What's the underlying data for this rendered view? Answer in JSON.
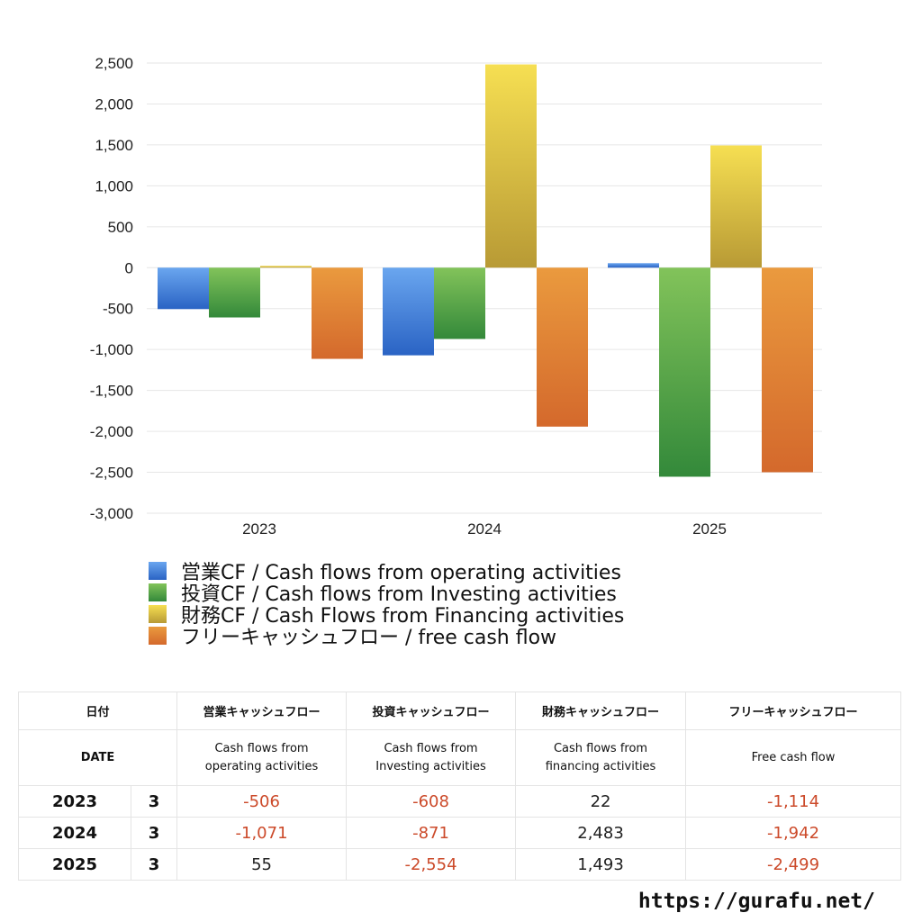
{
  "chart_data": {
    "type": "bar",
    "categories": [
      "2023",
      "2024",
      "2025"
    ],
    "series": [
      {
        "name": "営業CF / Cash flows from operating activities",
        "values": [
          -506,
          -1071,
          55
        ],
        "color": "#3d7fdb"
      },
      {
        "name": "投資CF / Cash flows from Investing activities",
        "values": [
          -608,
          -871,
          -2554
        ],
        "color": "#4ea646"
      },
      {
        "name": "財務CF / Cash Flows from Financing activities",
        "values": [
          22,
          2483,
          1493
        ],
        "color": "#e6c63e"
      },
      {
        "name": "フリーキャッシュフロー / free cash flow",
        "values": [
          -1114,
          -1942,
          -2499
        ],
        "color": "#e0832e"
      }
    ],
    "ylim": [
      -3000,
      2500
    ],
    "yticks": [
      2500,
      2000,
      1500,
      1000,
      500,
      0,
      -500,
      -1000,
      -1500,
      -2000,
      -2500,
      -3000
    ],
    "ytick_labels": [
      "2,500",
      "2,000",
      "1,500",
      "1,000",
      "500",
      "0",
      "-500",
      "-1,000",
      "-1,500",
      "-2,000",
      "-2,500",
      "-3,000"
    ],
    "grid": true,
    "legend_position": "bottom"
  },
  "table": {
    "headers_ja": [
      "日付",
      "営業キャッシュフロー",
      "投資キャッシュフロー",
      "財務キャッシュフロー",
      "フリーキャッシュフロー"
    ],
    "headers_en": [
      "DATE",
      "Cash flows from operating activities",
      "Cash flows from Investing activities",
      "Cash flows from financing activities",
      "Free cash flow"
    ],
    "rows": [
      {
        "year": "2023",
        "month": "3",
        "values": [
          "-506",
          "-608",
          "22",
          "-1,114"
        ]
      },
      {
        "year": "2024",
        "month": "3",
        "values": [
          "-1,071",
          "-871",
          "2,483",
          "-1,942"
        ]
      },
      {
        "year": "2025",
        "month": "3",
        "values": [
          "55",
          "-2,554",
          "1,493",
          "-2,499"
        ]
      }
    ]
  },
  "source": "https://gurafu.net/"
}
